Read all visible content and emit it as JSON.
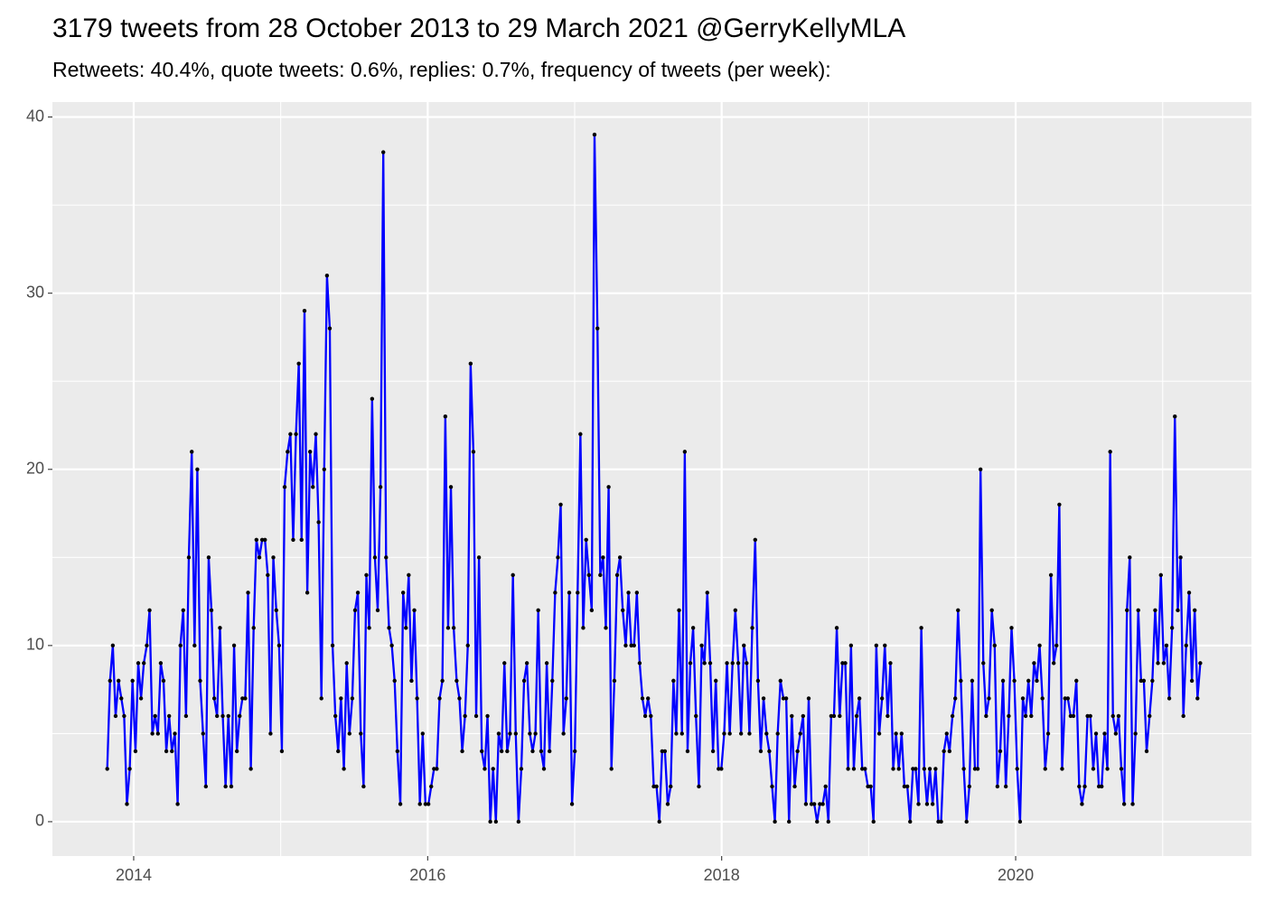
{
  "chart_data": {
    "type": "line",
    "title": "3179 tweets from 28 October 2013 to 29 March 2021 @GerryKellyMLA",
    "subtitle": "Retweets: 40.4%, quote tweets: 0.6%, replies: 0.7%, frequency of tweets (per week):",
    "x": [
      2013.82,
      2013.839,
      2013.858,
      2013.877,
      2013.897,
      2013.916,
      2013.935,
      2013.954,
      2013.973,
      2013.992,
      2014.012,
      2014.031,
      2014.05,
      2014.069,
      2014.089,
      2014.108,
      2014.127,
      2014.146,
      2014.165,
      2014.184,
      2014.203,
      2014.222,
      2014.241,
      2014.26,
      2014.28,
      2014.299,
      2014.318,
      2014.337,
      2014.356,
      2014.375,
      2014.395,
      2014.414,
      2014.433,
      2014.452,
      2014.472,
      2014.491,
      2014.51,
      2014.529,
      2014.548,
      2014.567,
      2014.587,
      2014.606,
      2014.625,
      2014.644,
      2014.664,
      2014.683,
      2014.702,
      2014.721,
      2014.74,
      2014.759,
      2014.778,
      2014.797,
      2014.816,
      2014.835,
      2014.855,
      2014.874,
      2014.893,
      2014.912,
      2014.931,
      2014.95,
      2014.97,
      2014.989,
      2015.008,
      2015.027,
      2015.047,
      2015.066,
      2015.085,
      2015.104,
      2015.123,
      2015.142,
      2015.162,
      2015.181,
      2015.2,
      2015.219,
      2015.239,
      2015.258,
      2015.277,
      2015.296,
      2015.315,
      2015.334,
      2015.353,
      2015.372,
      2015.391,
      2015.41,
      2015.43,
      2015.449,
      2015.468,
      2015.487,
      2015.506,
      2015.525,
      2015.545,
      2015.564,
      2015.583,
      2015.602,
      2015.622,
      2015.641,
      2015.66,
      2015.679,
      2015.698,
      2015.717,
      2015.737,
      2015.756,
      2015.775,
      2015.794,
      2015.814,
      2015.833,
      2015.852,
      2015.871,
      2015.89,
      2015.909,
      2015.928,
      2015.947,
      2015.966,
      2015.985,
      2016.005,
      2016.024,
      2016.043,
      2016.062,
      2016.081,
      2016.1,
      2016.12,
      2016.139,
      2016.158,
      2016.177,
      2016.197,
      2016.216,
      2016.235,
      2016.254,
      2016.273,
      2016.292,
      2016.311,
      2016.33,
      2016.349,
      2016.368,
      2016.388,
      2016.407,
      2016.426,
      2016.445,
      2016.464,
      2016.483,
      2016.503,
      2016.522,
      2016.541,
      2016.56,
      2016.58,
      2016.599,
      2016.618,
      2016.637,
      2016.656,
      2016.675,
      2016.695,
      2016.714,
      2016.733,
      2016.752,
      2016.772,
      2016.791,
      2016.81,
      2016.829,
      2016.848,
      2016.867,
      2016.886,
      2016.905,
      2016.924,
      2016.943,
      2016.963,
      2016.982,
      2017.001,
      2017.02,
      2017.039,
      2017.058,
      2017.078,
      2017.097,
      2017.116,
      2017.135,
      2017.155,
      2017.174,
      2017.193,
      2017.212,
      2017.231,
      2017.25,
      2017.27,
      2017.289,
      2017.308,
      2017.327,
      2017.347,
      2017.366,
      2017.385,
      2017.404,
      2017.423,
      2017.442,
      2017.461,
      2017.48,
      2017.499,
      2017.518,
      2017.538,
      2017.557,
      2017.576,
      2017.595,
      2017.614,
      2017.633,
      2017.653,
      2017.672,
      2017.691,
      2017.71,
      2017.73,
      2017.749,
      2017.768,
      2017.787,
      2017.806,
      2017.825,
      2017.845,
      2017.864,
      2017.883,
      2017.902,
      2017.922,
      2017.941,
      2017.96,
      2017.979,
      2017.998,
      2018.017,
      2018.036,
      2018.055,
      2018.074,
      2018.093,
      2018.113,
      2018.132,
      2018.151,
      2018.17,
      2018.189,
      2018.208,
      2018.228,
      2018.247,
      2018.266,
      2018.285,
      2018.305,
      2018.324,
      2018.343,
      2018.362,
      2018.381,
      2018.4,
      2018.42,
      2018.439,
      2018.458,
      2018.477,
      2018.497,
      2018.516,
      2018.535,
      2018.554,
      2018.573,
      2018.592,
      2018.611,
      2018.63,
      2018.649,
      2018.668,
      2018.688,
      2018.707,
      2018.726,
      2018.745,
      2018.764,
      2018.783,
      2018.803,
      2018.822,
      2018.841,
      2018.86,
      2018.88,
      2018.899,
      2018.918,
      2018.937,
      2018.956,
      2018.975,
      2018.995,
      2019.014,
      2019.033,
      2019.052,
      2019.072,
      2019.091,
      2019.11,
      2019.129,
      2019.148,
      2019.167,
      2019.186,
      2019.205,
      2019.224,
      2019.243,
      2019.263,
      2019.282,
      2019.301,
      2019.32,
      2019.339,
      2019.358,
      2019.378,
      2019.397,
      2019.416,
      2019.435,
      2019.455,
      2019.474,
      2019.493,
      2019.512,
      2019.531,
      2019.55,
      2019.57,
      2019.589,
      2019.608,
      2019.627,
      2019.647,
      2019.666,
      2019.685,
      2019.704,
      2019.723,
      2019.742,
      2019.761,
      2019.78,
      2019.799,
      2019.818,
      2019.838,
      2019.857,
      2019.876,
      2019.895,
      2019.914,
      2019.933,
      2019.953,
      2019.972,
      2019.991,
      2020.01,
      2020.03,
      2020.049,
      2020.068,
      2020.087,
      2020.106,
      2020.125,
      2020.144,
      2020.163,
      2020.182,
      2020.201,
      2020.221,
      2020.24,
      2020.259,
      2020.278,
      2020.297,
      2020.316,
      2020.336,
      2020.355,
      2020.374,
      2020.393,
      2020.413,
      2020.432,
      2020.451,
      2020.47,
      2020.489,
      2020.508,
      2020.528,
      2020.547,
      2020.566,
      2020.585,
      2020.605,
      2020.624,
      2020.643,
      2020.662,
      2020.681,
      2020.7,
      2020.719,
      2020.738,
      2020.757,
      2020.776,
      2020.796,
      2020.815,
      2020.834,
      2020.853,
      2020.872,
      2020.891,
      2020.911,
      2020.93,
      2020.949,
      2020.968,
      2020.988,
      2021.007,
      2021.026,
      2021.045,
      2021.064,
      2021.083,
      2021.103,
      2021.122,
      2021.141,
      2021.16,
      2021.18,
      2021.199,
      2021.218,
      2021.237,
      2021.256
    ],
    "values": [
      3,
      8,
      10,
      6,
      8,
      7,
      6,
      1,
      3,
      8,
      4,
      9,
      7,
      9,
      10,
      12,
      5,
      6,
      5,
      9,
      8,
      4,
      6,
      4,
      5,
      1,
      10,
      12,
      6,
      15,
      21,
      10,
      20,
      8,
      5,
      2,
      15,
      12,
      7,
      6,
      11,
      6,
      2,
      6,
      2,
      10,
      4,
      6,
      7,
      7,
      13,
      3,
      11,
      16,
      15,
      16,
      16,
      14,
      5,
      15,
      12,
      10,
      4,
      19,
      21,
      22,
      16,
      22,
      26,
      16,
      29,
      13,
      21,
      19,
      22,
      17,
      7,
      20,
      31,
      28,
      10,
      6,
      4,
      7,
      3,
      9,
      5,
      7,
      12,
      13,
      5,
      2,
      14,
      11,
      24,
      15,
      12,
      19,
      38,
      15,
      11,
      10,
      8,
      4,
      1,
      13,
      11,
      14,
      8,
      12,
      7,
      1,
      5,
      1,
      1,
      2,
      3,
      3,
      7,
      8,
      23,
      11,
      19,
      11,
      8,
      7,
      4,
      6,
      10,
      26,
      21,
      6,
      15,
      4,
      3,
      6,
      0,
      3,
      0,
      5,
      4,
      9,
      4,
      5,
      14,
      5,
      0,
      3,
      8,
      9,
      5,
      4,
      5,
      12,
      4,
      3,
      9,
      4,
      8,
      13,
      15,
      18,
      5,
      7,
      13,
      1,
      4,
      13,
      22,
      11,
      16,
      14,
      12,
      39,
      28,
      14,
      15,
      11,
      19,
      3,
      8,
      14,
      15,
      12,
      10,
      13,
      10,
      10,
      13,
      9,
      7,
      6,
      7,
      6,
      2,
      2,
      0,
      4,
      4,
      1,
      2,
      8,
      5,
      12,
      5,
      21,
      4,
      9,
      11,
      6,
      2,
      10,
      9,
      13,
      9,
      4,
      8,
      3,
      3,
      5,
      9,
      5,
      9,
      12,
      9,
      5,
      10,
      9,
      5,
      11,
      16,
      8,
      4,
      7,
      5,
      4,
      2,
      0,
      5,
      8,
      7,
      7,
      0,
      6,
      2,
      4,
      5,
      6,
      1,
      7,
      1,
      1,
      0,
      1,
      1,
      2,
      0,
      6,
      6,
      11,
      6,
      9,
      9,
      3,
      10,
      3,
      6,
      7,
      3,
      3,
      2,
      2,
      0,
      10,
      5,
      7,
      10,
      6,
      9,
      3,
      5,
      3,
      5,
      2,
      2,
      0,
      3,
      3,
      1,
      11,
      3,
      1,
      3,
      1,
      3,
      0,
      0,
      4,
      5,
      4,
      6,
      7,
      12,
      8,
      3,
      0,
      2,
      8,
      3,
      3,
      20,
      9,
      6,
      7,
      12,
      10,
      2,
      4,
      8,
      2,
      6,
      11,
      8,
      3,
      0,
      7,
      6,
      8,
      6,
      9,
      8,
      10,
      7,
      3,
      5,
      14,
      9,
      10,
      18,
      3,
      7,
      7,
      6,
      6,
      8,
      2,
      1,
      2,
      6,
      6,
      3,
      5,
      2,
      2,
      5,
      3,
      21,
      6,
      5,
      6,
      3,
      1,
      12,
      15,
      1,
      5,
      12,
      8,
      8,
      4,
      6,
      8,
      12,
      9,
      14,
      9,
      10,
      7,
      11,
      23,
      12,
      15,
      6,
      10,
      13,
      8,
      12,
      7,
      9
    ],
    "color": "#0000ff",
    "marker_color": "#000000",
    "xlim": [
      2013.447,
      2021.604
    ],
    "xticks": [
      2014,
      2016,
      2018,
      2020
    ],
    "xminor": [
      2015,
      2017,
      2019,
      2021
    ],
    "ylim": [
      -1.95,
      40.85
    ],
    "yticks": [
      0,
      10,
      20,
      30,
      40
    ],
    "yminor": [
      5,
      15,
      25,
      35
    ],
    "grid": true
  }
}
